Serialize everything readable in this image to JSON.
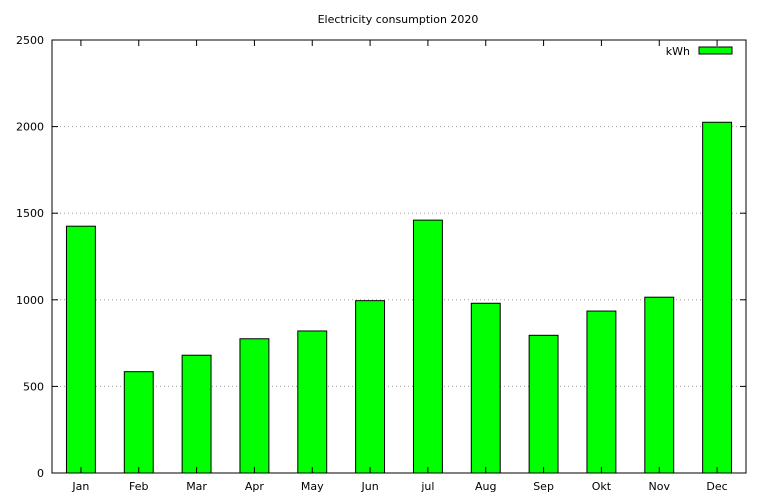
{
  "chart_data": {
    "type": "bar",
    "title": "Electricity consumption 2020",
    "xlabel": "",
    "ylabel": "",
    "categories": [
      "Jan",
      "Feb",
      "Mar",
      "Apr",
      "May",
      "Jun",
      "jul",
      "Aug",
      "Sep",
      "Okt",
      "Nov",
      "Dec"
    ],
    "series": [
      {
        "name": "kWh",
        "values": [
          1425,
          585,
          680,
          775,
          820,
          995,
          1460,
          980,
          795,
          935,
          1015,
          2025
        ]
      }
    ],
    "ylim": [
      0,
      2500
    ],
    "yticks": [
      0,
      500,
      1000,
      1500,
      2000,
      2500
    ],
    "grid": "y-dotted",
    "legend_position": "top-right",
    "colors": {
      "bar_fill": "#00ff00",
      "bar_stroke": "#000000"
    }
  }
}
